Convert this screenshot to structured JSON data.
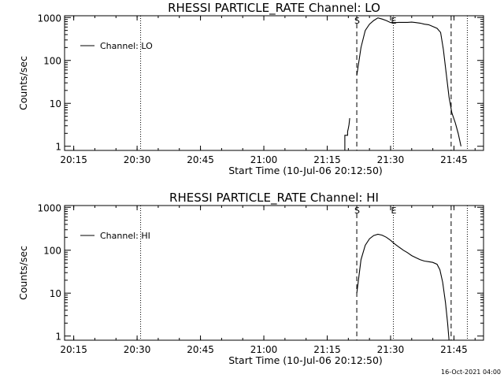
{
  "footer": {
    "timestamp": "16-Oct-2021 04:00"
  },
  "chart_data": [
    {
      "type": "line",
      "title": "RHESSI PARTICLE_RATE Channel: LO",
      "xlabel": "Start Time (10-Jul-06 20:12:50)",
      "ylabel": "Counts/sec",
      "y_scale": "log",
      "xlim": [
        "20:12:50",
        "21:52:00"
      ],
      "ylim": [
        0.8,
        1100
      ],
      "x_tick_labels": [
        "20:15",
        "20:30",
        "20:45",
        "21:00",
        "21:15",
        "21:30",
        "21:45"
      ],
      "y_tick_labels": [
        "1",
        "10",
        "100",
        "1000"
      ],
      "legend": {
        "position": "top-left",
        "entries": [
          "Channel: LO"
        ]
      },
      "markers": [
        {
          "label": "S",
          "time": "21:22:00",
          "style": "dashed"
        },
        {
          "label": "E",
          "time": "21:30:40",
          "style": "dotted"
        },
        {
          "label": "",
          "time": "21:44:20",
          "style": "dashed"
        },
        {
          "label": "",
          "time": "20:30:50",
          "style": "dotted"
        },
        {
          "label": "",
          "time": "21:48:10",
          "style": "dotted"
        }
      ],
      "series": [
        {
          "name": "Channel: LO",
          "segments": [
            [
              [
                "21:19:10",
                0.8
              ],
              [
                "21:19:10",
                1.8
              ],
              [
                "21:19:50",
                1.8
              ],
              [
                "21:19:50",
                2.2
              ],
              [
                "21:20:00",
                2.6
              ],
              [
                "21:20:10",
                3.2
              ],
              [
                "21:20:20",
                4.5
              ]
            ],
            [
              [
                "21:22:00",
                45
              ],
              [
                "21:23:00",
                200
              ],
              [
                "21:24:00",
                500
              ],
              [
                "21:25:00",
                700
              ],
              [
                "21:26:00",
                850
              ],
              [
                "21:27:00",
                980
              ],
              [
                "21:28:00",
                920
              ],
              [
                "21:29:00",
                850
              ],
              [
                "21:30:00",
                760
              ],
              [
                "21:31:00",
                760
              ],
              [
                "21:32:00",
                770
              ],
              [
                "21:33:00",
                770
              ],
              [
                "21:34:00",
                770
              ],
              [
                "21:35:00",
                780
              ],
              [
                "21:36:00",
                760
              ],
              [
                "21:37:00",
                740
              ],
              [
                "21:38:00",
                700
              ],
              [
                "21:39:00",
                680
              ],
              [
                "21:40:00",
                620
              ],
              [
                "21:41:00",
                560
              ],
              [
                "21:41:50",
                450
              ],
              [
                "21:42:30",
                180
              ],
              [
                "21:43:10",
                50
              ],
              [
                "21:43:50",
                14
              ],
              [
                "21:44:30",
                6
              ],
              [
                "21:45:20",
                3.5
              ],
              [
                "21:46:00",
                2
              ],
              [
                "21:46:40",
                1
              ]
            ]
          ]
        }
      ]
    },
    {
      "type": "line",
      "title": "RHESSI PARTICLE_RATE Channel: HI",
      "xlabel": "Start Time (10-Jul-06 20:12:50)",
      "ylabel": "Counts/sec",
      "y_scale": "log",
      "xlim": [
        "20:12:50",
        "21:52:00"
      ],
      "ylim": [
        0.8,
        1100
      ],
      "x_tick_labels": [
        "20:15",
        "20:30",
        "20:45",
        "21:00",
        "21:15",
        "21:30",
        "21:45"
      ],
      "y_tick_labels": [
        "1",
        "10",
        "100",
        "1000"
      ],
      "legend": {
        "position": "top-left",
        "entries": [
          "Channel: HI"
        ]
      },
      "markers": [
        {
          "label": "S",
          "time": "21:22:00",
          "style": "dashed"
        },
        {
          "label": "E",
          "time": "21:30:40",
          "style": "dotted"
        },
        {
          "label": "",
          "time": "21:44:20",
          "style": "dashed"
        },
        {
          "label": "",
          "time": "20:30:50",
          "style": "dotted"
        },
        {
          "label": "",
          "time": "21:48:10",
          "style": "dotted"
        }
      ],
      "series": [
        {
          "name": "Channel: HI",
          "segments": [
            [
              [
                "21:22:00",
                10
              ],
              [
                "21:23:00",
                60
              ],
              [
                "21:24:00",
                130
              ],
              [
                "21:25:00",
                185
              ],
              [
                "21:26:00",
                220
              ],
              [
                "21:27:00",
                235
              ],
              [
                "21:28:00",
                225
              ],
              [
                "21:29:00",
                200
              ],
              [
                "21:30:00",
                170
              ],
              [
                "21:31:00",
                140
              ],
              [
                "21:32:00",
                118
              ],
              [
                "21:33:00",
                100
              ],
              [
                "21:34:00",
                88
              ],
              [
                "21:35:00",
                75
              ],
              [
                "21:36:00",
                67
              ],
              [
                "21:37:00",
                60
              ],
              [
                "21:38:00",
                56
              ],
              [
                "21:39:00",
                54
              ],
              [
                "21:40:00",
                52
              ],
              [
                "21:41:00",
                47
              ],
              [
                "21:41:40",
                35
              ],
              [
                "21:42:20",
                18
              ],
              [
                "21:43:00",
                6
              ],
              [
                "21:43:30",
                2
              ],
              [
                "21:43:50",
                0.8
              ]
            ]
          ]
        }
      ]
    }
  ]
}
